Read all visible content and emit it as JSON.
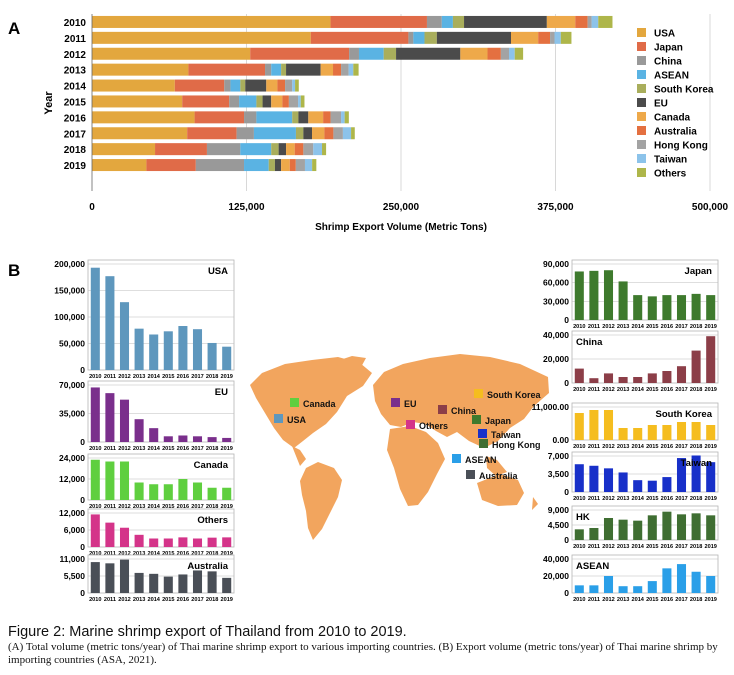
{
  "panel_labels": {
    "a": "A",
    "b": "B"
  },
  "colors": {
    "USA": "#e3a73e",
    "Japan": "#e06b48",
    "China": "#999999",
    "ASEAN": "#5ab3e3",
    "South Korea": "#a9ae5c",
    "EU": "#4b4b4b",
    "Canada": "#eea94a",
    "Australia": "#e47040",
    "Hong Kong": "#a3a3a3",
    "Taiwan": "#8cc3ea",
    "Others": "#aeb64a",
    "map": "#f2a55e",
    "mini_bg": "#ffffff",
    "grid": "#bdbdbd"
  },
  "chart_data": [
    {
      "type": "bar",
      "orientation": "horizontal",
      "stacked": true,
      "xlabel": "Shrimp Export Volume (Metric Tons)",
      "ylabel": "Year",
      "xlim": [
        0,
        500000
      ],
      "xticks": [
        0,
        125000,
        250000,
        375000,
        500000
      ],
      "xtick_labels": [
        "0",
        "125,000",
        "250,000",
        "375,000",
        "500,000"
      ],
      "legend_position": "right",
      "categories": [
        "2010",
        "2011",
        "2012",
        "2013",
        "2014",
        "2015",
        "2016",
        "2017",
        "2018",
        "2019"
      ],
      "series": [
        {
          "name": "USA",
          "values": [
            193000,
            177000,
            128000,
            78000,
            67000,
            73000,
            83000,
            77000,
            51000,
            44000
          ]
        },
        {
          "name": "Japan",
          "values": [
            78000,
            79000,
            80000,
            62000,
            40000,
            38000,
            40000,
            40000,
            42000,
            40000
          ]
        },
        {
          "name": "China",
          "values": [
            12000,
            4000,
            8000,
            5000,
            5000,
            8000,
            10000,
            14000,
            27000,
            39000
          ]
        },
        {
          "name": "ASEAN",
          "values": [
            9000,
            9000,
            20000,
            8000,
            8000,
            14000,
            29000,
            34000,
            25000,
            20000
          ]
        },
        {
          "name": "South Korea",
          "values": [
            9000,
            10000,
            10000,
            4000,
            4000,
            5000,
            5000,
            6000,
            6000,
            5000
          ]
        },
        {
          "name": "EU",
          "values": [
            67000,
            60000,
            52000,
            28000,
            17000,
            7000,
            8000,
            7000,
            6000,
            5000
          ]
        },
        {
          "name": "Canada",
          "values": [
            23000,
            22000,
            22000,
            10000,
            9000,
            9000,
            12000,
            10000,
            7000,
            7000
          ]
        },
        {
          "name": "Australia",
          "values": [
            10000,
            9600,
            10800,
            6500,
            6200,
            5300,
            6000,
            7300,
            7000,
            4900
          ]
        },
        {
          "name": "Hong Kong",
          "values": [
            3200,
            3600,
            6600,
            6100,
            5800,
            7400,
            8500,
            7700,
            8000,
            7400
          ]
        },
        {
          "name": "Taiwan",
          "values": [
            5400,
            5100,
            4600,
            3800,
            2300,
            2200,
            2900,
            6600,
            7100,
            5800
          ]
        },
        {
          "name": "Others",
          "values": [
            11500,
            8600,
            6800,
            4300,
            3000,
            3000,
            3400,
            3000,
            3300,
            3400
          ]
        }
      ]
    },
    {
      "type": "bar",
      "title": "USA",
      "yticks": [
        0,
        50000,
        100000,
        150000,
        200000
      ],
      "ytick_labels": [
        "0",
        "50,000",
        "100,000",
        "150,000",
        "200,000"
      ],
      "ylim": [
        0,
        200000
      ],
      "color": "#5e97bd",
      "categories": [
        "2010",
        "2011",
        "2012",
        "2013",
        "2014",
        "2015",
        "2016",
        "2017",
        "2018",
        "2019"
      ],
      "values": [
        193000,
        177000,
        128000,
        78000,
        67000,
        73000,
        83000,
        77000,
        51000,
        44000
      ]
    },
    {
      "type": "bar",
      "title": "EU",
      "yticks": [
        0,
        35000,
        70000
      ],
      "ytick_labels": [
        "0",
        "35,000",
        "70,000"
      ],
      "ylim": [
        0,
        70000
      ],
      "color": "#7a2f8c",
      "categories": [
        "2010",
        "2011",
        "2012",
        "2013",
        "2014",
        "2015",
        "2016",
        "2017",
        "2018",
        "2019"
      ],
      "values": [
        67000,
        60000,
        52000,
        28000,
        17000,
        7000,
        8000,
        7000,
        6000,
        5000
      ]
    },
    {
      "type": "bar",
      "title": "Canada",
      "yticks": [
        0,
        12000,
        24000
      ],
      "ytick_labels": [
        "0",
        "12,000",
        "24,000"
      ],
      "ylim": [
        0,
        24000
      ],
      "color": "#5fcf3f",
      "categories": [
        "2010",
        "2011",
        "2012",
        "2013",
        "2014",
        "2015",
        "2016",
        "2017",
        "2018",
        "2019"
      ],
      "values": [
        23000,
        22000,
        22000,
        10000,
        9000,
        9000,
        12000,
        10000,
        7000,
        7000
      ]
    },
    {
      "type": "bar",
      "title": "Others",
      "yticks": [
        0,
        6000,
        12000
      ],
      "ytick_labels": [
        "0",
        "6,000",
        "12,000"
      ],
      "ylim": [
        0,
        12000
      ],
      "color": "#d43489",
      "categories": [
        "2010",
        "2011",
        "2012",
        "2013",
        "2014",
        "2015",
        "2016",
        "2017",
        "2018",
        "2019"
      ],
      "values": [
        11500,
        8600,
        6800,
        4300,
        3000,
        3000,
        3400,
        3000,
        3300,
        3400
      ]
    },
    {
      "type": "bar",
      "title": "Australia",
      "yticks": [
        0,
        5500,
        11000
      ],
      "ytick_labels": [
        "0",
        "5,500",
        "11,000"
      ],
      "ylim": [
        0,
        11000
      ],
      "color": "#4a4f57",
      "categories": [
        "2010",
        "2011",
        "2012",
        "2013",
        "2014",
        "2015",
        "2016",
        "2017",
        "2018",
        "2019"
      ],
      "values": [
        10000,
        9600,
        10800,
        6500,
        6200,
        5300,
        6000,
        7300,
        7000,
        4900
      ]
    },
    {
      "type": "bar",
      "title": "Japan",
      "yticks": [
        0,
        30000,
        60000,
        90000
      ],
      "ytick_labels": [
        "0",
        "30,000",
        "60,000",
        "90,000"
      ],
      "ylim": [
        0,
        90000
      ],
      "color": "#3e7a2d",
      "categories": [
        "2010",
        "2011",
        "2012",
        "2013",
        "2014",
        "2015",
        "2016",
        "2017",
        "2018",
        "2019"
      ],
      "values": [
        78000,
        79000,
        80000,
        62000,
        40000,
        38000,
        40000,
        40000,
        42000,
        40000
      ]
    },
    {
      "type": "bar",
      "title": "China",
      "yticks": [
        0,
        20000,
        40000
      ],
      "ytick_labels": [
        "0",
        "20,000",
        "40,000"
      ],
      "ylim": [
        0,
        40000
      ],
      "color": "#8c3e48",
      "categories": [
        "2010",
        "2011",
        "2012",
        "2013",
        "2014",
        "2015",
        "2016",
        "2017",
        "2018",
        "2019"
      ],
      "values": [
        12000,
        4000,
        8000,
        5000,
        5000,
        8000,
        10000,
        14000,
        27000,
        39000
      ]
    },
    {
      "type": "bar",
      "title": "South Korea",
      "yticks": [
        0,
        11000
      ],
      "ytick_labels": [
        "0.00",
        "11,000.00"
      ],
      "ylim": [
        0,
        11000
      ],
      "color": "#f5bd1f",
      "categories": [
        "2010",
        "2011",
        "2012",
        "2013",
        "2014",
        "2015",
        "2016",
        "2017",
        "2018",
        "2019"
      ],
      "values": [
        9000,
        10000,
        10000,
        4000,
        4000,
        5000,
        5000,
        6000,
        6000,
        5000
      ]
    },
    {
      "type": "bar",
      "title": "Taiwan",
      "yticks": [
        0,
        3500,
        7000
      ],
      "ytick_labels": [
        "0",
        "3,500",
        "7,000"
      ],
      "ylim": [
        0,
        7000
      ],
      "color": "#1830c9",
      "categories": [
        "2010",
        "2011",
        "2012",
        "2013",
        "2014",
        "2015",
        "2016",
        "2017",
        "2018",
        "2019"
      ],
      "values": [
        5400,
        5100,
        4600,
        3800,
        2300,
        2200,
        2900,
        6600,
        7100,
        5800
      ]
    },
    {
      "type": "bar",
      "title": "HK",
      "yticks": [
        0,
        4500,
        9000
      ],
      "ytick_labels": [
        "0",
        "4,500",
        "9,000"
      ],
      "ylim": [
        0,
        9000
      ],
      "color": "#3f6e32",
      "categories": [
        "2010",
        "2011",
        "2012",
        "2013",
        "2014",
        "2015",
        "2016",
        "2017",
        "2018",
        "2019"
      ],
      "values": [
        3200,
        3600,
        6600,
        6100,
        5800,
        7400,
        8500,
        7700,
        8000,
        7400
      ]
    },
    {
      "type": "bar",
      "title": "ASEAN",
      "yticks": [
        0,
        20000,
        40000
      ],
      "ytick_labels": [
        "0",
        "20,000",
        "40,000"
      ],
      "ylim": [
        0,
        40000
      ],
      "color": "#2a9fe8",
      "categories": [
        "2010",
        "2011",
        "2012",
        "2013",
        "2014",
        "2015",
        "2016",
        "2017",
        "2018",
        "2019"
      ],
      "values": [
        9000,
        9000,
        20000,
        8000,
        8000,
        14000,
        29000,
        34000,
        25000,
        20000
      ]
    }
  ],
  "map_labels": [
    {
      "text": "South Korea",
      "color": "#f5bd1f"
    },
    {
      "text": "Canada",
      "color": "#5fcf3f"
    },
    {
      "text": "EU",
      "color": "#7a2f8c"
    },
    {
      "text": "China",
      "color": "#8c3e48"
    },
    {
      "text": "USA",
      "color": "#5e97bd"
    },
    {
      "text": "Others",
      "color": "#d43489"
    },
    {
      "text": "Japan",
      "color": "#3e7a2d"
    },
    {
      "text": "Taiwan",
      "color": "#1830c9"
    },
    {
      "text": "Hong Kong",
      "color": "#3f6e32"
    },
    {
      "text": "ASEAN",
      "color": "#2a9fe8"
    },
    {
      "text": "Australia",
      "color": "#4a4f57"
    }
  ],
  "caption": {
    "title": "Figure 2: Marine shrimp export of Thailand from 2010 to 2019.",
    "text": "(A) Total volume (metric tons/year) of Thai marine shrimp export to various importing countries. (B) Export volume (metric tons/year) of Thai marine shrimp by importing countries (ASA, 2021)."
  }
}
